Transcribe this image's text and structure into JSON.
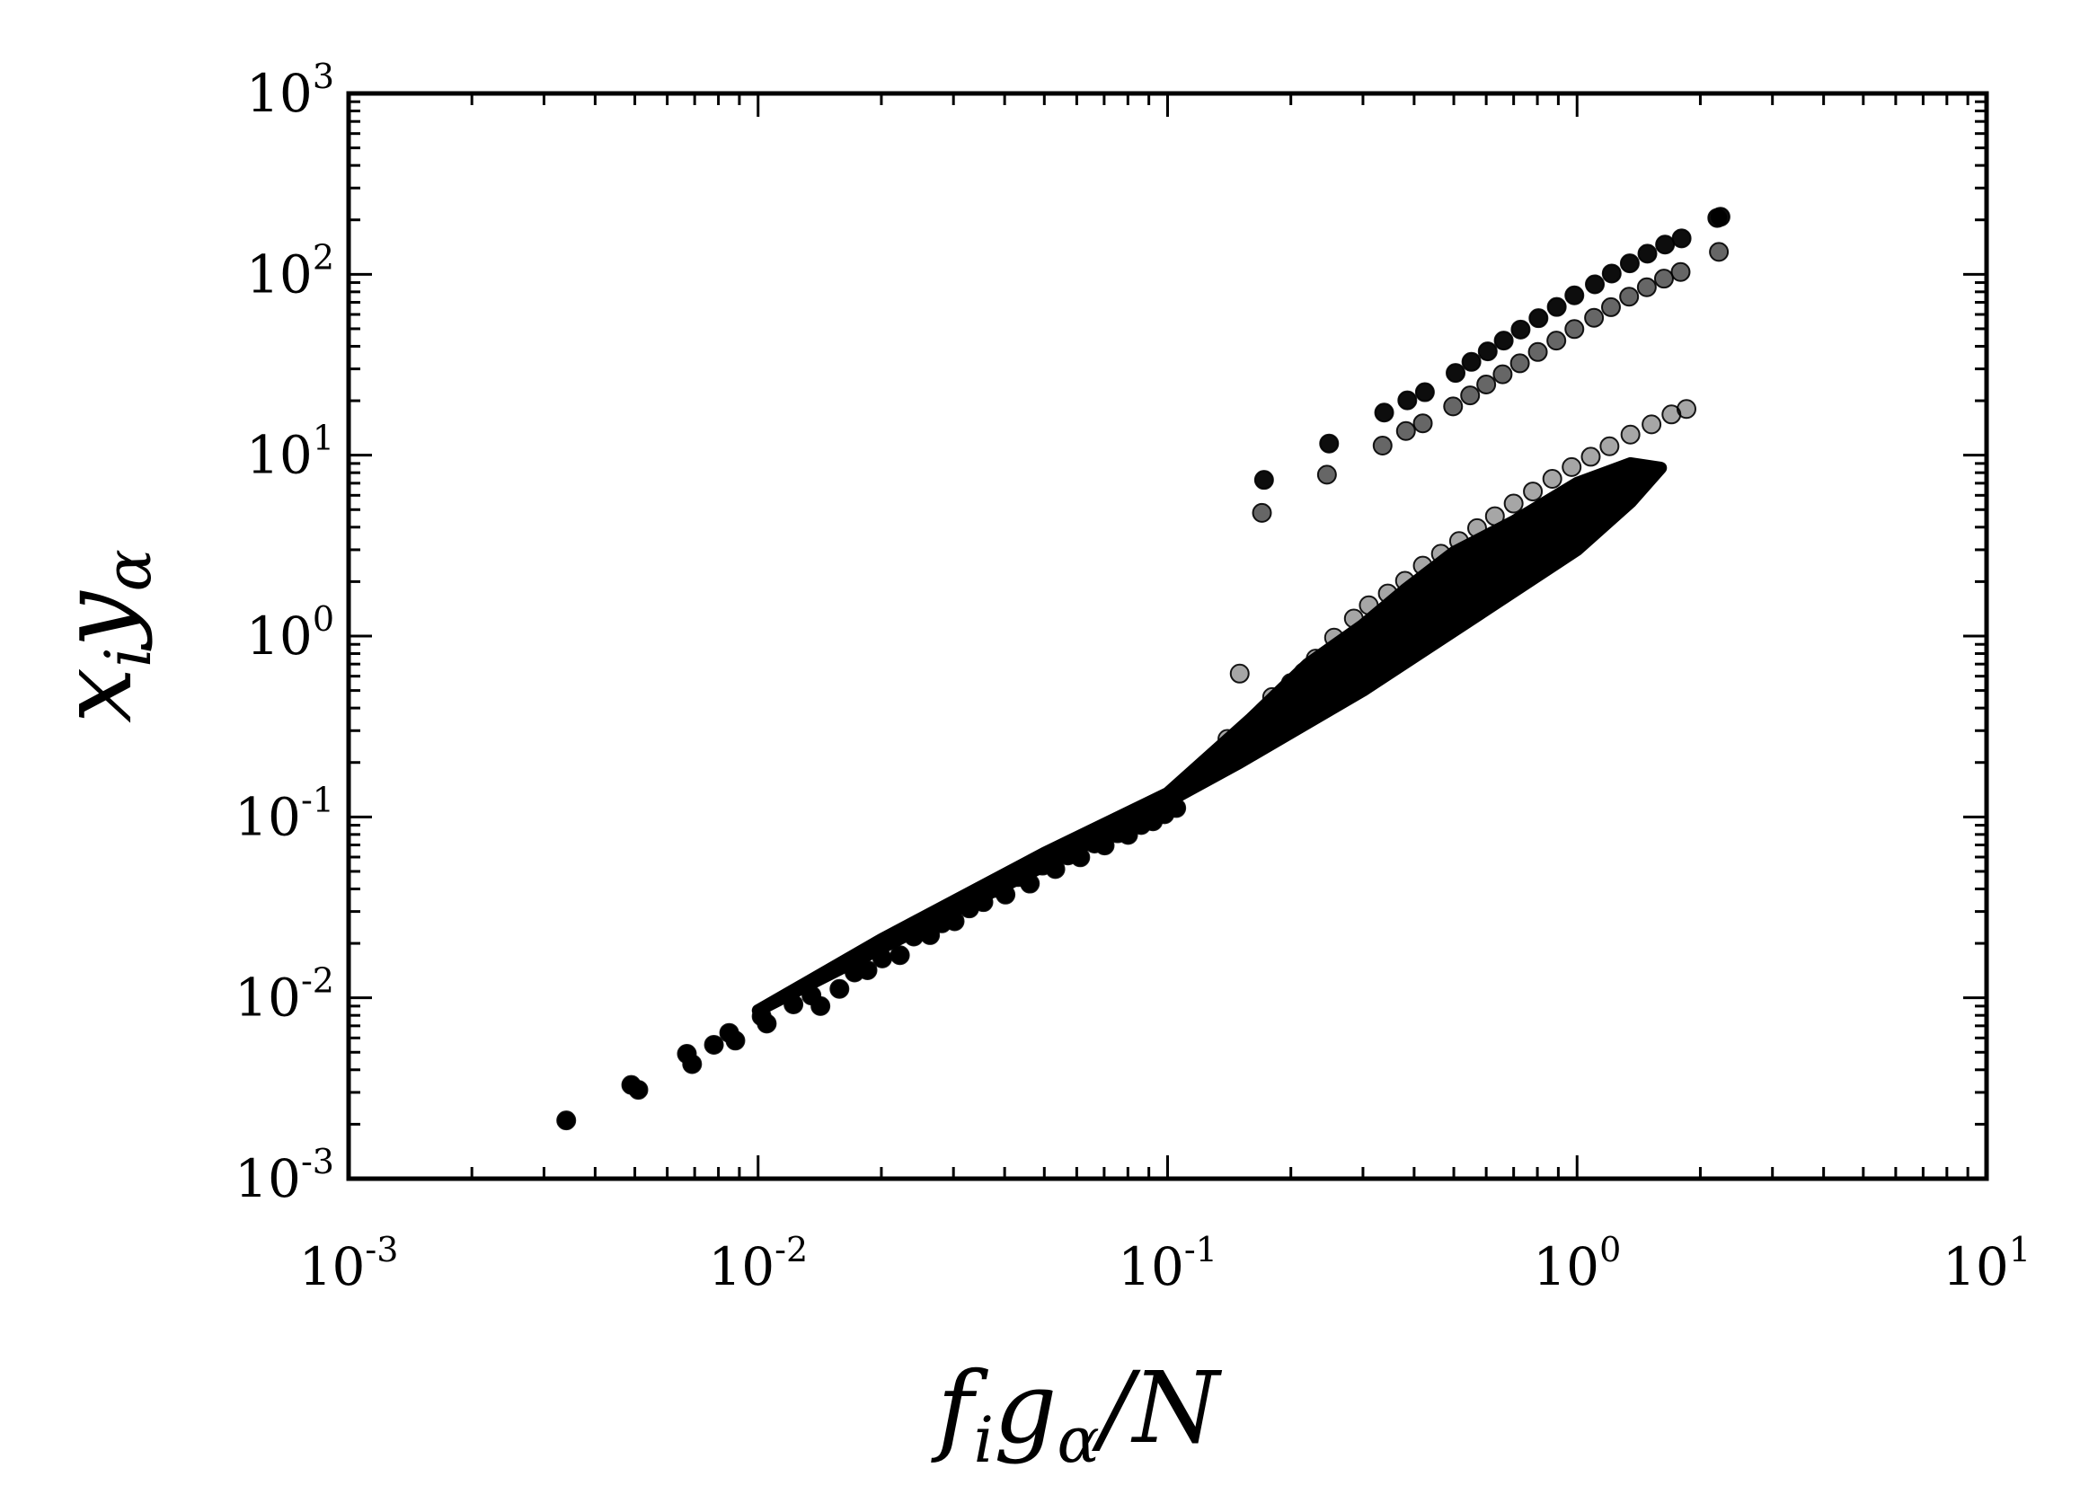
{
  "chart_data": {
    "type": "scatter",
    "xlabel": {
      "base": "f",
      "sub1": "i",
      "base2": "g",
      "sub2": "α",
      "tail": "/N"
    },
    "ylabel": {
      "base": "x",
      "sub1": "i",
      "base2": "y",
      "sub2": "α"
    },
    "xscale": "log",
    "yscale": "log",
    "xlim": [
      0.001,
      10
    ],
    "ylim": [
      0.001,
      1000
    ],
    "grid": false,
    "xticks": [
      {
        "value": 0.001,
        "base": "10",
        "exp": "-3"
      },
      {
        "value": 0.01,
        "base": "10",
        "exp": "-2"
      },
      {
        "value": 0.1,
        "base": "10",
        "exp": "-1"
      },
      {
        "value": 1,
        "base": "10",
        "exp": "0"
      },
      {
        "value": 10,
        "base": "10",
        "exp": "1"
      }
    ],
    "yticks": [
      {
        "value": 0.001,
        "base": "10",
        "exp": "-3"
      },
      {
        "value": 0.01,
        "base": "10",
        "exp": "-2"
      },
      {
        "value": 0.1,
        "base": "10",
        "exp": "-1"
      },
      {
        "value": 1,
        "base": "10",
        "exp": "0"
      },
      {
        "value": 10,
        "base": "10",
        "exp": "1"
      },
      {
        "value": 100,
        "base": "10",
        "exp": "2"
      },
      {
        "value": 1000,
        "base": "10",
        "exp": "3"
      }
    ],
    "marker_color": "#000000",
    "series": [
      {
        "points": [
          [
            0.0034,
            0.0021
          ],
          [
            0.0049,
            0.0033
          ],
          [
            0.0051,
            0.0031
          ],
          [
            0.0067,
            0.0049
          ],
          [
            0.0069,
            0.0043
          ],
          [
            0.0078,
            0.0055
          ],
          [
            0.0085,
            0.0064
          ],
          [
            0.0088,
            0.0058
          ],
          [
            0.0102,
            0.0079
          ],
          [
            0.0105,
            0.0072
          ],
          [
            0.0122,
            0.0092
          ],
          [
            0.0135,
            0.0103
          ],
          [
            0.0142,
            0.009
          ],
          [
            0.0158,
            0.0112
          ],
          [
            0.0172,
            0.0138
          ],
          [
            0.0185,
            0.0142
          ],
          [
            0.0201,
            0.0165
          ],
          [
            0.0222,
            0.0172
          ],
          [
            0.024,
            0.0218
          ],
          [
            0.0263,
            0.0222
          ],
          [
            0.0281,
            0.0258
          ],
          [
            0.0302,
            0.0265
          ],
          [
            0.0328,
            0.0312
          ],
          [
            0.0355,
            0.0338
          ],
          [
            0.0381,
            0.0405
          ],
          [
            0.0402,
            0.0372
          ],
          [
            0.0432,
            0.0465
          ],
          [
            0.0461,
            0.0428
          ],
          [
            0.0495,
            0.0538
          ],
          [
            0.0532,
            0.0515
          ],
          [
            0.0571,
            0.0612
          ],
          [
            0.0612,
            0.0598
          ],
          [
            0.0663,
            0.0712
          ],
          [
            0.0702,
            0.0695
          ],
          [
            0.0755,
            0.0812
          ],
          [
            0.0801,
            0.0795
          ],
          [
            0.0862,
            0.0902
          ],
          [
            0.0921,
            0.0945
          ],
          [
            0.0983,
            0.1035
          ],
          [
            0.105,
            0.112
          ]
        ]
      },
      {
        "points": [
          [
            0.172,
            7.3
          ],
          [
            0.248,
            11.6
          ],
          [
            0.338,
            17.2
          ],
          [
            0.385,
            20.1
          ],
          [
            0.425,
            22.3
          ],
          [
            0.505,
            28.5
          ],
          [
            0.552,
            32.8
          ],
          [
            0.605,
            37.5
          ],
          [
            0.662,
            43.0
          ],
          [
            0.728,
            49.5
          ],
          [
            0.805,
            57.2
          ],
          [
            0.892,
            66.0
          ],
          [
            0.985,
            76.5
          ],
          [
            1.105,
            88.0
          ],
          [
            1.215,
            101.0
          ],
          [
            1.345,
            115.0
          ],
          [
            1.485,
            130.0
          ],
          [
            1.64,
            146.0
          ],
          [
            1.8,
            158.0
          ],
          [
            2.2,
            205.0
          ],
          [
            2.24,
            208.0
          ]
        ]
      },
      {
        "points": [
          [
            0.17,
            4.8
          ],
          [
            0.245,
            7.8
          ],
          [
            0.335,
            11.3
          ],
          [
            0.382,
            13.6
          ],
          [
            0.42,
            15.0
          ],
          [
            0.498,
            18.6
          ],
          [
            0.548,
            21.4
          ],
          [
            0.6,
            24.6
          ],
          [
            0.658,
            28.0
          ],
          [
            0.725,
            32.2
          ],
          [
            0.802,
            37.2
          ],
          [
            0.89,
            43.0
          ],
          [
            0.985,
            49.8
          ],
          [
            1.1,
            57.5
          ],
          [
            1.21,
            65.8
          ],
          [
            1.34,
            75.2
          ],
          [
            1.48,
            84.8
          ],
          [
            1.63,
            94.6
          ],
          [
            1.79,
            103.0
          ],
          [
            2.22,
            133.0
          ]
        ]
      },
      {
        "points": [
          [
            0.15,
            0.62
          ],
          [
            0.18,
            0.46
          ],
          [
            0.2,
            0.55
          ],
          [
            0.215,
            0.63
          ],
          [
            0.16,
            0.32
          ],
          [
            0.175,
            0.38
          ],
          [
            0.19,
            0.44
          ],
          [
            0.205,
            0.52
          ],
          [
            0.14,
            0.27
          ],
          [
            0.23,
            0.75
          ],
          [
            0.255,
            0.98
          ],
          [
            0.285,
            1.25
          ],
          [
            0.31,
            1.48
          ],
          [
            0.345,
            1.72
          ],
          [
            0.38,
            2.02
          ],
          [
            0.42,
            2.45
          ],
          [
            0.465,
            2.85
          ],
          [
            0.515,
            3.35
          ],
          [
            0.57,
            3.95
          ],
          [
            0.63,
            4.6
          ],
          [
            0.7,
            5.4
          ],
          [
            0.78,
            6.3
          ],
          [
            0.87,
            7.4
          ],
          [
            0.97,
            8.6
          ],
          [
            1.08,
            9.8
          ],
          [
            1.2,
            11.2
          ],
          [
            1.35,
            13.0
          ],
          [
            1.52,
            14.8
          ],
          [
            1.7,
            16.8
          ],
          [
            1.85,
            18.0
          ]
        ]
      }
    ]
  }
}
